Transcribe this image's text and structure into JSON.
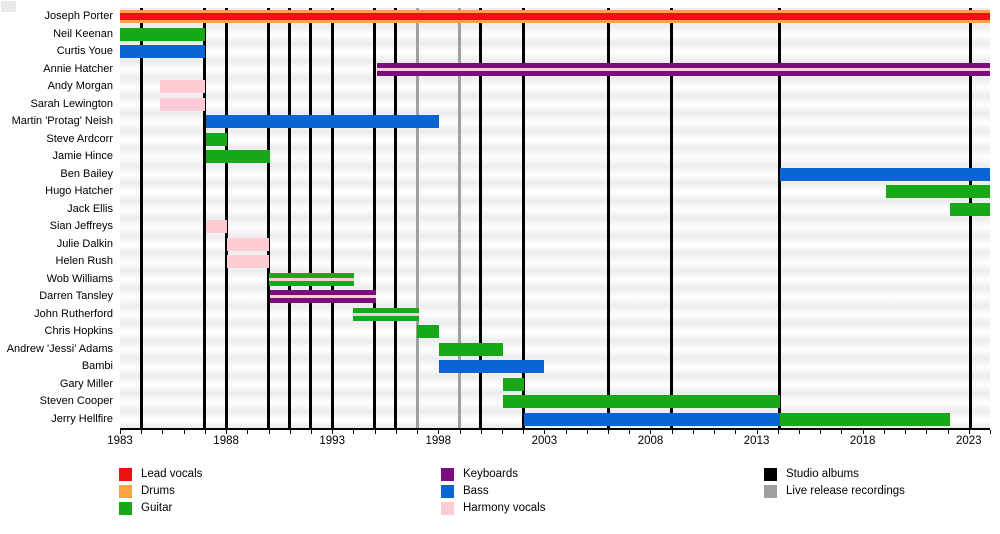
{
  "chart_data": {
    "type": "timeline",
    "description": "Band members timeline (Gantt-style) with studio album and live release markers",
    "x_domain": [
      1983,
      2024.0
    ],
    "x_tick_years_every": 1,
    "x_tick_first": 1983,
    "x_tick_last": 2024,
    "x_label_years": [
      1983,
      1988,
      1993,
      1998,
      2003,
      2008,
      2013,
      2018,
      2023
    ],
    "colors": {
      "lead_vocals": "#ee1111",
      "drums": "#ffa340",
      "guitar": "#16a816",
      "keyboards": "#7d0c7d",
      "bass": "#0a64d2",
      "harmony_vocals": "#ffccd6",
      "studio_albums": "#000000",
      "live_releases": "#a0a0a0"
    },
    "members": [
      {
        "name": "Joseph Porter",
        "segments": [
          {
            "role": "drums",
            "start": 1983,
            "end": 2024.0,
            "secondary": "lead_vocals",
            "secondary_height": 7
          }
        ]
      },
      {
        "name": "Neil Keenan",
        "segments": [
          {
            "role": "guitar",
            "start": 1983,
            "end": 1987
          }
        ]
      },
      {
        "name": "Curtis Youe",
        "segments": [
          {
            "role": "bass",
            "start": 1983,
            "end": 1987
          }
        ]
      },
      {
        "name": "Annie Hatcher",
        "segments": [
          {
            "role": "keyboards",
            "start": 1995.1,
            "end": 2024.0,
            "secondary": "harmony_vocals",
            "secondary_height": 3
          }
        ]
      },
      {
        "name": "Andy Morgan",
        "segments": [
          {
            "role": "harmony_vocals",
            "start": 1984.9,
            "end": 1987
          }
        ]
      },
      {
        "name": "Sarah Lewington",
        "segments": [
          {
            "role": "harmony_vocals",
            "start": 1984.9,
            "end": 1987
          }
        ]
      },
      {
        "name": "Martin 'Protag' Neish",
        "segments": [
          {
            "role": "bass",
            "start": 1987.05,
            "end": 1998.05
          }
        ]
      },
      {
        "name": "Steve Ardcorr",
        "segments": [
          {
            "role": "guitar",
            "start": 1987.05,
            "end": 1988.05
          }
        ]
      },
      {
        "name": "Jamie Hince",
        "segments": [
          {
            "role": "guitar",
            "start": 1987.05,
            "end": 1990.05
          }
        ]
      },
      {
        "name": "Ben Bailey",
        "segments": [
          {
            "role": "bass",
            "start": 2014.1,
            "end": 2024.0
          }
        ]
      },
      {
        "name": "Hugo Hatcher",
        "segments": [
          {
            "role": "guitar",
            "start": 2019.1,
            "end": 2024.0
          }
        ]
      },
      {
        "name": "Jack Ellis",
        "segments": [
          {
            "role": "guitar",
            "start": 2022.1,
            "end": 2024.0
          }
        ]
      },
      {
        "name": "Sian Jeffreys",
        "segments": [
          {
            "role": "harmony_vocals",
            "start": 1987.05,
            "end": 1988.05
          }
        ]
      },
      {
        "name": "Julie Dalkin",
        "segments": [
          {
            "role": "harmony_vocals",
            "start": 1988.05,
            "end": 1990.0
          }
        ]
      },
      {
        "name": "Helen Rush",
        "segments": [
          {
            "role": "harmony_vocals",
            "start": 1988.05,
            "end": 1990.0
          }
        ]
      },
      {
        "name": "Wob Williams",
        "segments": [
          {
            "role": "guitar",
            "start": 1990.0,
            "end": 1994.05,
            "secondary": "harmony_vocals",
            "secondary_height": 3
          }
        ]
      },
      {
        "name": "Darren Tansley",
        "segments": [
          {
            "role": "keyboards",
            "start": 1990.05,
            "end": 1995.05,
            "secondary": "harmony_vocals",
            "secondary_height": 3
          }
        ]
      },
      {
        "name": "John Rutherford",
        "segments": [
          {
            "role": "guitar",
            "start": 1994.0,
            "end": 1997.1,
            "secondary": "harmony_vocals",
            "secondary_height": 3
          }
        ]
      },
      {
        "name": "Chris Hopkins",
        "segments": [
          {
            "role": "guitar",
            "start": 1997.0,
            "end": 1998.05
          }
        ]
      },
      {
        "name": "Andrew 'Jessi' Adams",
        "segments": [
          {
            "role": "guitar",
            "start": 1998.05,
            "end": 2001.05
          }
        ]
      },
      {
        "name": "Bambi",
        "segments": [
          {
            "role": "bass",
            "start": 1998.05,
            "end": 2003.0
          }
        ]
      },
      {
        "name": "Gary Miller",
        "segments": [
          {
            "role": "guitar",
            "start": 2001.05,
            "end": 2002.05
          }
        ]
      },
      {
        "name": "Steven Cooper",
        "segments": [
          {
            "role": "guitar",
            "start": 2001.05,
            "end": 2014.1
          }
        ]
      },
      {
        "name": "Jerry Hellfire",
        "segments": [
          {
            "role": "bass",
            "start": 2002.05,
            "end": 2014.1
          },
          {
            "role": "guitar",
            "start": 2014.1,
            "end": 2022.1
          }
        ]
      }
    ],
    "studio_album_years": [
      1984,
      1987,
      1988,
      1990,
      1991,
      1992,
      1993,
      1995,
      1996,
      2000,
      2002,
      2006,
      2009,
      2014.1,
      2023.1
    ],
    "live_release_years": [
      1997,
      1999
    ]
  },
  "legend": {
    "columns": [
      {
        "items": [
          {
            "label": "Lead vocals",
            "role": "lead_vocals"
          },
          {
            "label": "Drums",
            "role": "drums"
          },
          {
            "label": "Guitar",
            "role": "guitar"
          }
        ]
      },
      {
        "items": [
          {
            "label": "Keyboards",
            "role": "keyboards"
          },
          {
            "label": "Bass",
            "role": "bass"
          },
          {
            "label": "Harmony vocals",
            "role": "harmony_vocals"
          }
        ]
      },
      {
        "items": [
          {
            "label": "Studio albums",
            "role": "studio_albums"
          },
          {
            "label": "Live release recordings",
            "role": "live_releases"
          }
        ]
      }
    ]
  }
}
